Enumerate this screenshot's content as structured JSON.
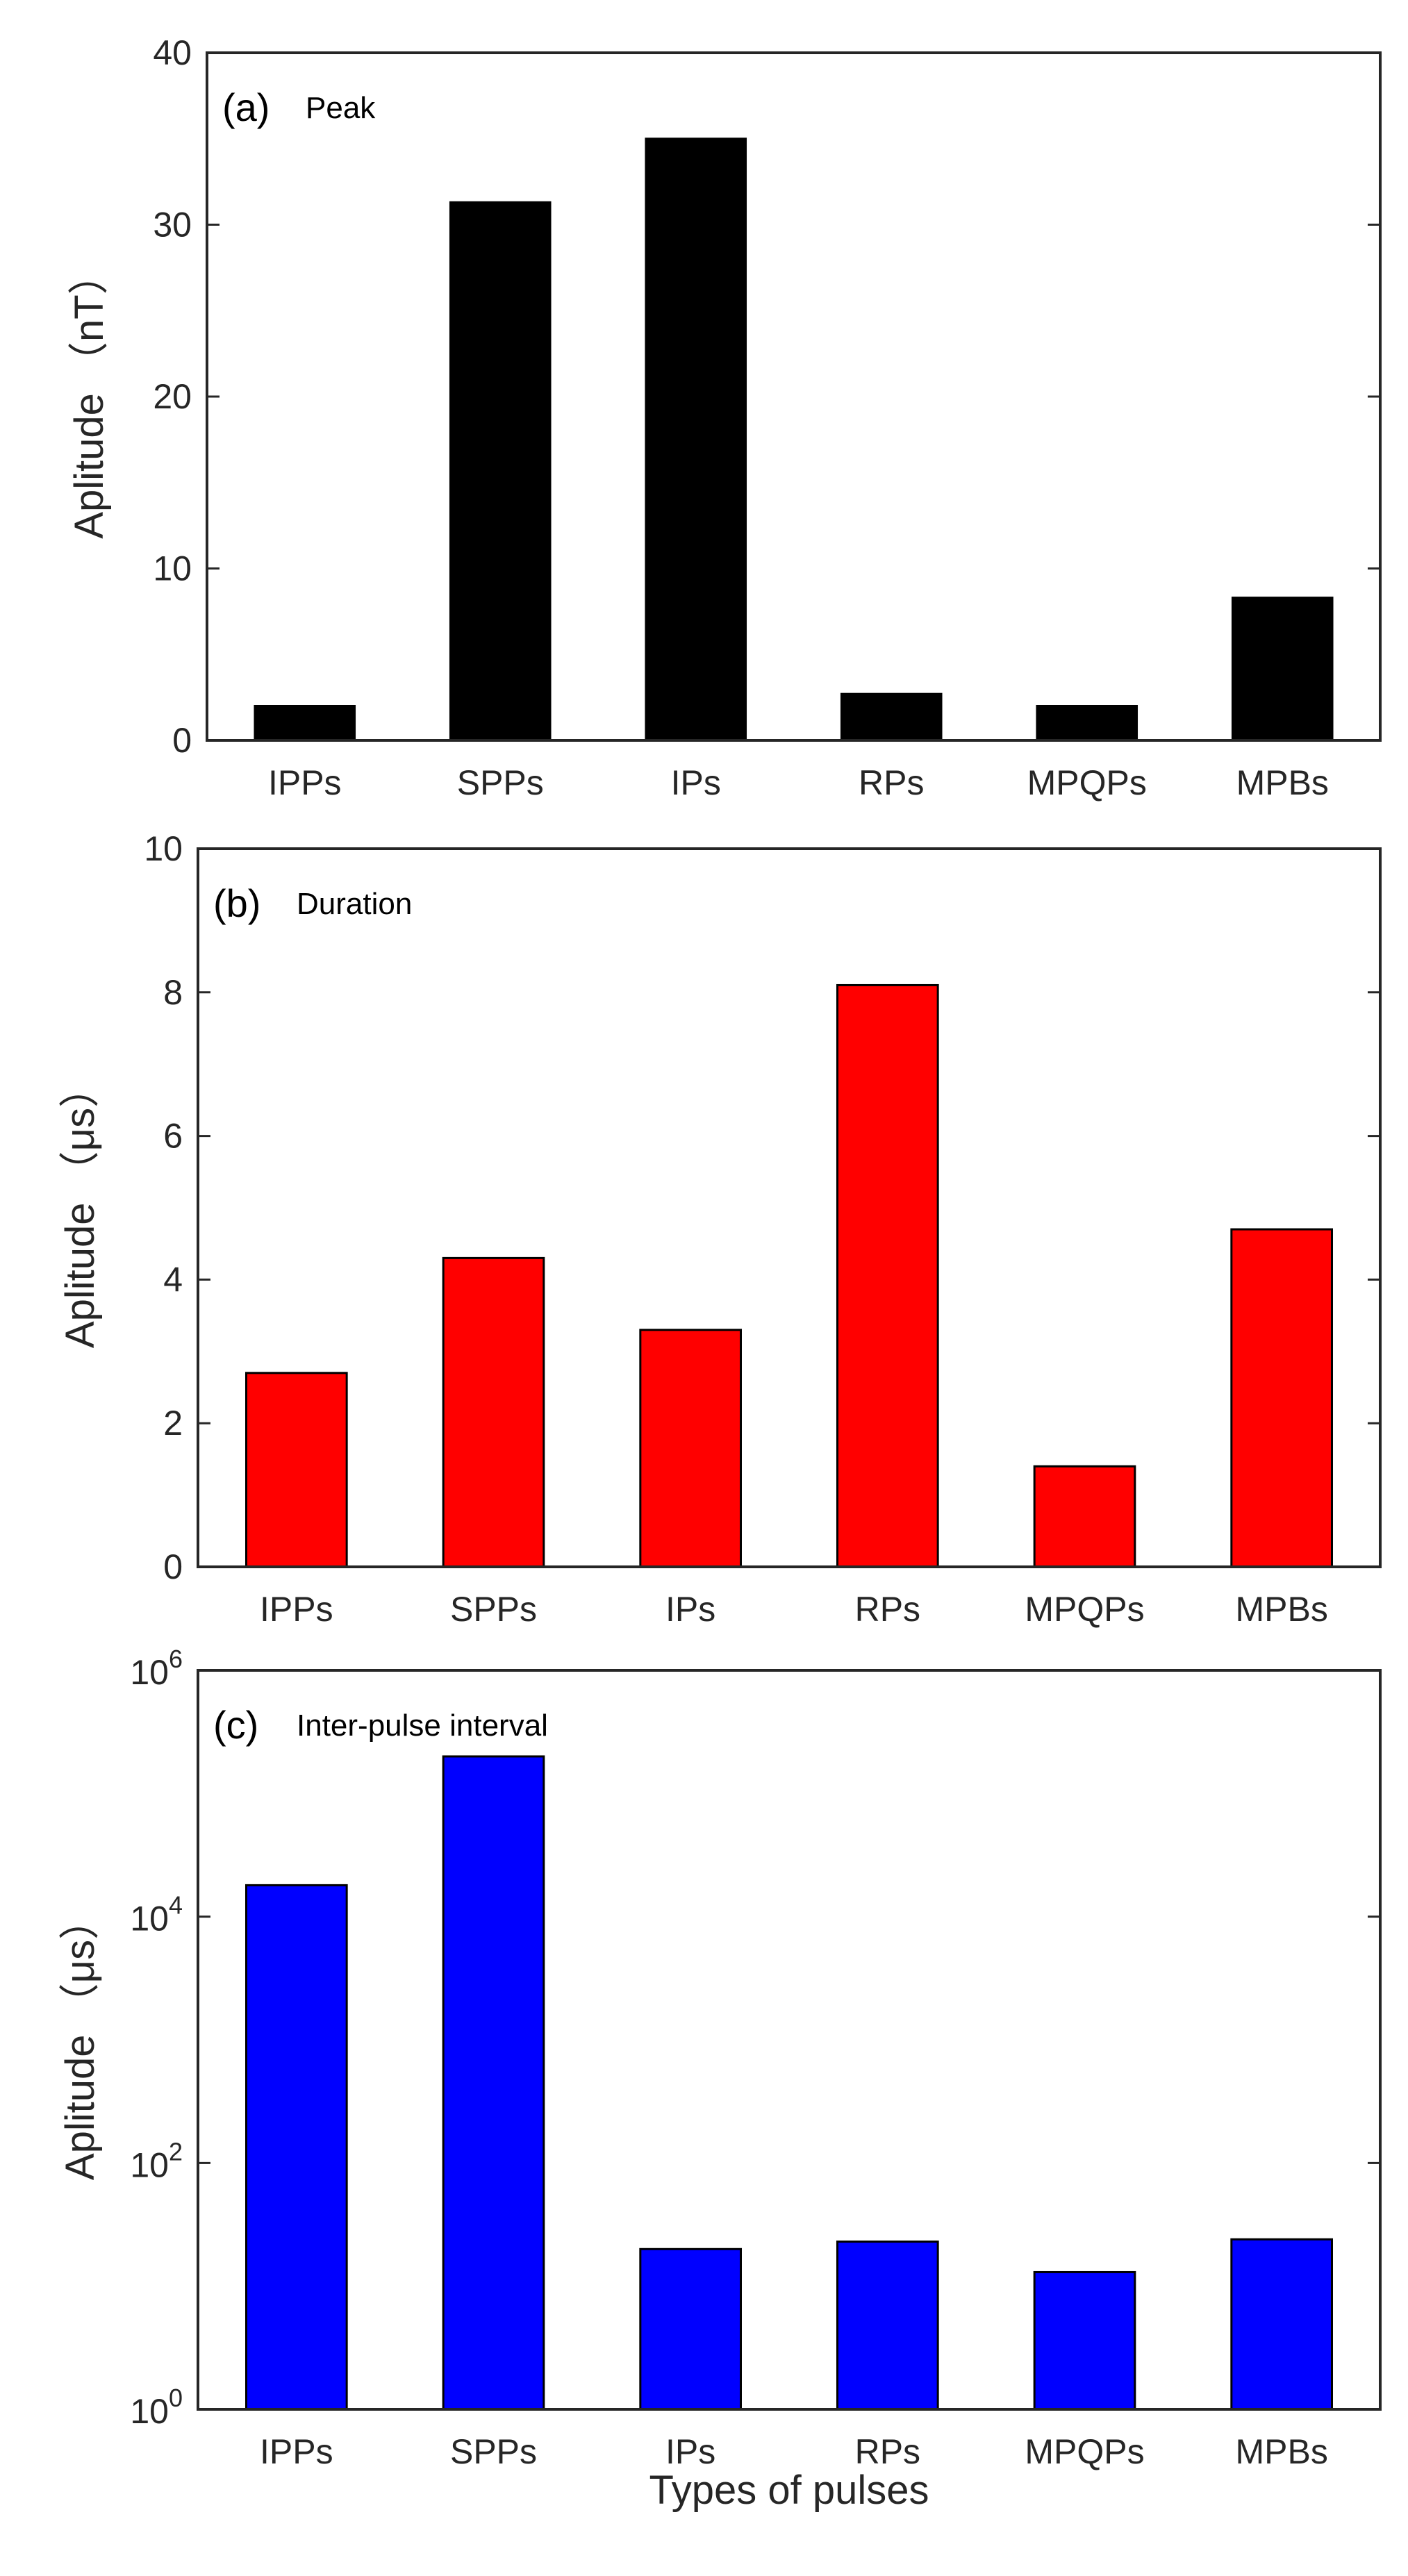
{
  "chart_data": [
    {
      "type": "bar",
      "panel": "(a)",
      "title": "Peak",
      "ylabel": "Aplitude （nT）",
      "xlabel": "",
      "yscale": "linear",
      "ylim": [
        0,
        40
      ],
      "yticks": [
        0,
        10,
        20,
        30,
        40
      ],
      "ytick_labels": [
        "0",
        "10",
        "20",
        "30",
        "40"
      ],
      "categories": [
        "IPPs",
        "SPPs",
        "IPs",
        "RPs",
        "MPQPs",
        "MPBs"
      ],
      "values": [
        2.0,
        31.3,
        35.0,
        2.7,
        2.0,
        8.3
      ],
      "color": "#000000"
    },
    {
      "type": "bar",
      "panel": "(b)",
      "title": "Duration",
      "ylabel": "Aplitude （μs）",
      "xlabel": "",
      "yscale": "linear",
      "ylim": [
        0,
        10
      ],
      "yticks": [
        0,
        2,
        4,
        6,
        8,
        10
      ],
      "ytick_labels": [
        "0",
        "2",
        "4",
        "6",
        "8",
        "10"
      ],
      "categories": [
        "IPPs",
        "SPPs",
        "IPs",
        "RPs",
        "MPQPs",
        "MPBs"
      ],
      "values": [
        2.7,
        4.3,
        3.3,
        8.1,
        1.4,
        4.7
      ],
      "color": "#ff0000"
    },
    {
      "type": "bar",
      "panel": "(c)",
      "title": "Inter-pulse interval",
      "ylabel": "Aplitude （μs）",
      "xlabel": "Types of pulses",
      "yscale": "log",
      "ylim": [
        1,
        1000000
      ],
      "yticks": [
        1,
        100,
        10000,
        1000000
      ],
      "ytick_labels": [
        {
          "base": "10",
          "exp": "0"
        },
        {
          "base": "10",
          "exp": "2"
        },
        {
          "base": "10",
          "exp": "4"
        },
        {
          "base": "10",
          "exp": "6"
        }
      ],
      "categories": [
        "IPPs",
        "SPPs",
        "IPs",
        "RPs",
        "MPQPs",
        "MPBs"
      ],
      "values": [
        18000,
        200000,
        20,
        23,
        13,
        24
      ],
      "color": "#0000ff"
    }
  ]
}
